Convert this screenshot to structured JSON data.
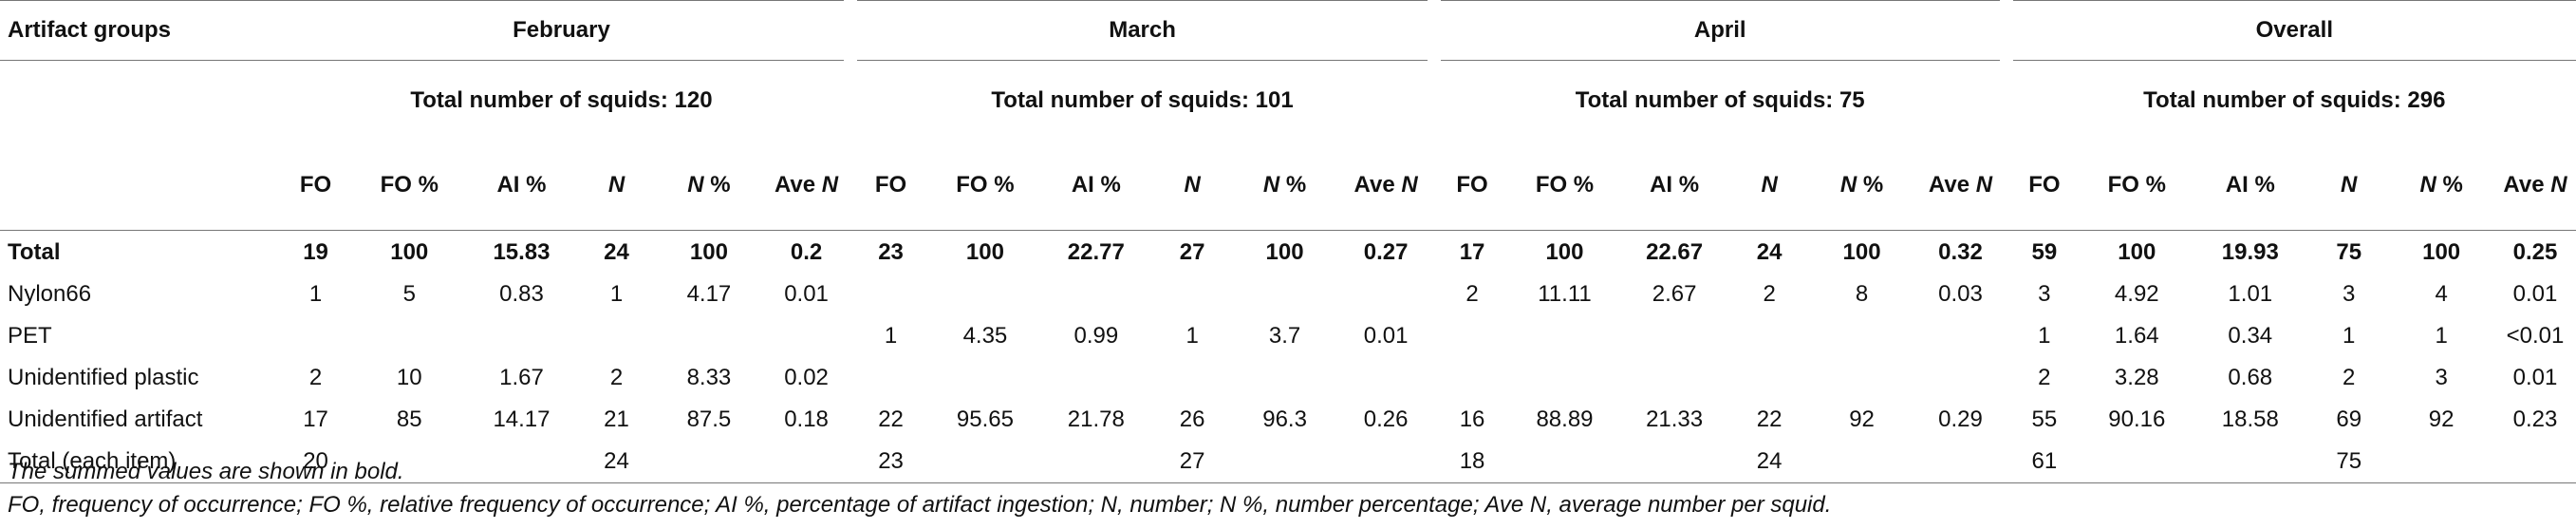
{
  "header": {
    "corner": "Artifact groups",
    "groups": [
      "February",
      "March",
      "April",
      "Overall"
    ],
    "totals": [
      "Total number of squids: 120",
      "Total number of squids: 101",
      "Total number of squids: 75",
      "Total number of squids: 296"
    ],
    "cols": [
      "FO",
      "FO %",
      "AI %",
      "N",
      "N %",
      "Ave N"
    ]
  },
  "rows": [
    {
      "label": "Total",
      "bold": true,
      "cells": [
        "19",
        "100",
        "15.83",
        "24",
        "100",
        "0.2",
        "23",
        "100",
        "22.77",
        "27",
        "100",
        "0.27",
        "17",
        "100",
        "22.67",
        "24",
        "100",
        "0.32",
        "59",
        "100",
        "19.93",
        "75",
        "100",
        "0.25"
      ]
    },
    {
      "label": "Nylon66",
      "cells": [
        "1",
        "5",
        "0.83",
        "1",
        "4.17",
        "0.01",
        "",
        "",
        "",
        "",
        "",
        "",
        "2",
        "11.11",
        "2.67",
        "2",
        "8",
        "0.03",
        "3",
        "4.92",
        "1.01",
        "3",
        "4",
        "0.01"
      ]
    },
    {
      "label": "PET",
      "cells": [
        "",
        "",
        "",
        "",
        "",
        "",
        "1",
        "4.35",
        "0.99",
        "1",
        "3.7",
        "0.01",
        "",
        "",
        "",
        "",
        "",
        "",
        "1",
        "1.64",
        "0.34",
        "1",
        "1",
        "<0.01"
      ]
    },
    {
      "label": "Unidentified plastic",
      "cells": [
        "2",
        "10",
        "1.67",
        "2",
        "8.33",
        "0.02",
        "",
        "",
        "",
        "",
        "",
        "",
        "",
        "",
        "",
        "",
        "",
        "",
        "2",
        "3.28",
        "0.68",
        "2",
        "3",
        "0.01"
      ]
    },
    {
      "label": "Unidentified artifact",
      "cells": [
        "17",
        "85",
        "14.17",
        "21",
        "87.5",
        "0.18",
        "22",
        "95.65",
        "21.78",
        "26",
        "96.3",
        "0.26",
        "16",
        "88.89",
        "21.33",
        "22",
        "92",
        "0.29",
        "55",
        "90.16",
        "18.58",
        "69",
        "92",
        "0.23"
      ]
    },
    {
      "label": "Total (each item)",
      "label_suffix": ")",
      "cells": [
        "20",
        "",
        "",
        "24",
        "",
        "",
        "23",
        "",
        "",
        "27",
        "",
        "",
        "18",
        "",
        "",
        "24",
        "",
        "",
        "61",
        "",
        "",
        "75",
        "",
        ""
      ]
    }
  ],
  "footnotes": [
    "The summed values are shown in bold.",
    "FO, frequency of occurrence; FO %, relative frequency of occurrence; AI %, percentage of artifact ingestion; N, number; N %, number percentage; Ave N, average number per squid."
  ]
}
